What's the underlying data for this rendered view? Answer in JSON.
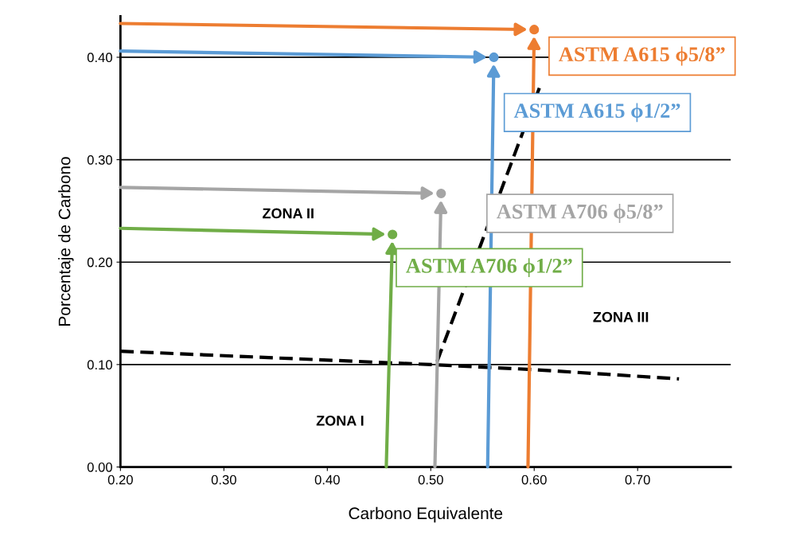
{
  "chart_data": {
    "type": "scatter",
    "xlabel": "Carbono Equivalente",
    "ylabel": "Porcentaje de Carbono",
    "xlim": [
      0.2,
      0.79
    ],
    "ylim": [
      0,
      0.44
    ],
    "xticks": [
      {
        "value": 0.2,
        "label": "0.20"
      },
      {
        "value": 0.3,
        "label": "0.30"
      },
      {
        "value": 0.4,
        "label": "0.40"
      },
      {
        "value": 0.5,
        "label": "0.50"
      },
      {
        "value": 0.6,
        "label": "0.60"
      },
      {
        "value": 0.7,
        "label": "0.70"
      }
    ],
    "yticks": [
      {
        "value": 0,
        "label": "0.00"
      },
      {
        "value": 0.1,
        "label": "0.10"
      },
      {
        "value": 0.2,
        "label": "0.20"
      },
      {
        "value": 0.3,
        "label": "0.30"
      },
      {
        "value": 0.4,
        "label": "0.40"
      }
    ],
    "grid": "y",
    "series": [
      {
        "type": "line",
        "color": "#000000",
        "line_style": "dashed",
        "x": [
          0.2,
          0.5,
          0.6,
          0.74
        ],
        "values": [
          0.113,
          0.1,
          0.095,
          0.086
        ]
      },
      {
        "type": "line",
        "color": "#000000",
        "line_style": "dashed",
        "x": [
          0.605,
          0.505
        ],
        "values": [
          0.37,
          0.1
        ]
      },
      {
        "name": "ASTM A615 ϕ5/8”",
        "color": "#ed7d31",
        "marker": "circle",
        "x": [
          0.6
        ],
        "values": [
          0.427
        ]
      },
      {
        "name": "ASTM A615 ϕ1/2”",
        "color": "#5b9bd5",
        "marker": "circle",
        "x": [
          0.561
        ],
        "values": [
          0.4
        ]
      },
      {
        "name": "ASTM A706 ϕ5/8”",
        "color": "#a5a5a5",
        "marker": "circle",
        "x": [
          0.51
        ],
        "values": [
          0.267
        ]
      },
      {
        "name": "ASTM A706 ϕ1/2”",
        "color": "#70ad47",
        "marker": "circle",
        "x": [
          0.463
        ],
        "values": [
          0.227
        ]
      }
    ],
    "annotations": [
      "ZONA I",
      "ZONA II",
      "ZONA III"
    ]
  }
}
